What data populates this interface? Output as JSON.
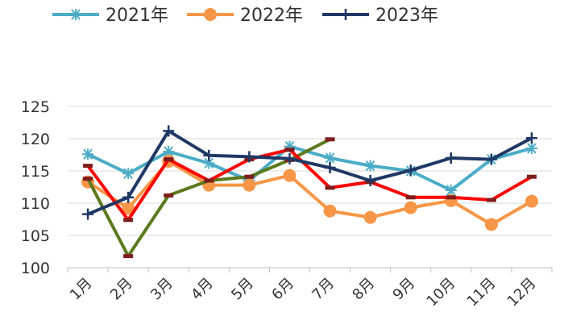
{
  "chart_data": {
    "type": "line",
    "title": "",
    "xlabel": "",
    "ylabel": "",
    "ylim": [
      100,
      125
    ],
    "yticks": [
      100,
      105,
      110,
      115,
      120,
      125
    ],
    "grid": true,
    "legend_position": "top",
    "categories": [
      "1月",
      "2月",
      "3月",
      "4月",
      "5月",
      "6月",
      "7月",
      "8月",
      "9月",
      "10月",
      "11月",
      "12月"
    ],
    "series": [
      {
        "name": "2021年",
        "color": "#4BACC6",
        "marker": "asterisk",
        "in_legend": true,
        "values": [
          117.6,
          114.6,
          118.0,
          116.2,
          113.5,
          118.8,
          117.0,
          115.8,
          115.0,
          112.0,
          116.8,
          118.5
        ]
      },
      {
        "name": "2022年",
        "color": "#F79646",
        "marker": "circle",
        "in_legend": true,
        "values": [
          113.3,
          109.2,
          116.5,
          112.8,
          112.8,
          114.3,
          108.8,
          107.8,
          109.3,
          110.4,
          106.7,
          110.3
        ]
      },
      {
        "name": "2023年",
        "color": "#1F3864",
        "marker": "plus",
        "in_legend": true,
        "values": [
          108.3,
          110.9,
          121.2,
          117.4,
          117.2,
          116.9,
          115.5,
          113.5,
          115.1,
          117.0,
          116.8,
          120.1
        ]
      },
      {
        "name": "",
        "color": "#FF0000",
        "marker": "dash",
        "in_legend": false,
        "values": [
          115.8,
          107.4,
          116.8,
          113.5,
          116.8,
          118.3,
          112.4,
          113.3,
          110.9,
          110.9,
          110.5,
          114.1
        ]
      },
      {
        "name": "",
        "color": "#5B7A1E",
        "marker": "dash",
        "in_legend": false,
        "values": [
          113.8,
          101.8,
          111.2,
          113.5,
          114.1,
          116.7,
          119.9,
          null,
          null,
          null,
          null,
          null
        ]
      }
    ]
  }
}
